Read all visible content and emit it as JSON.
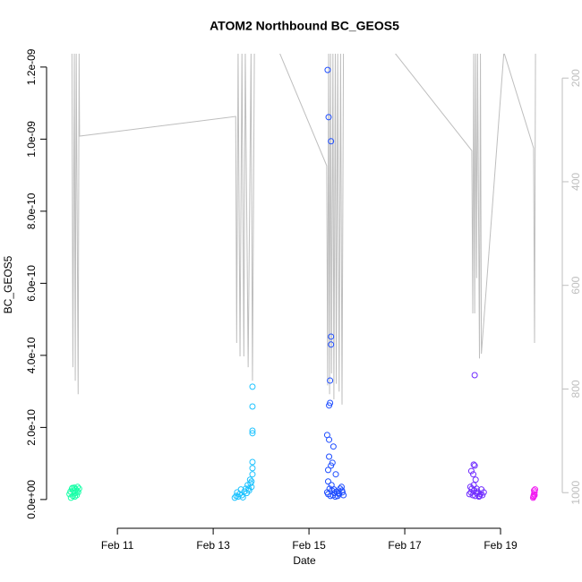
{
  "chart_data": {
    "type": "scatter",
    "title": "ATOM2 Northbound BC_GEOS5",
    "x_label": "Date",
    "y_label": "BC_GEOS5",
    "xlim": [
      9.67,
      20.14
    ],
    "xticks": [
      {
        "value": 11,
        "label": "Feb 11"
      },
      {
        "value": 13,
        "label": "Feb 13"
      },
      {
        "value": 15,
        "label": "Feb 15"
      },
      {
        "value": 17,
        "label": "Feb 17"
      },
      {
        "value": 19,
        "label": "Feb 19"
      }
    ],
    "ylim": [
      -5e-11,
      1.237e-09
    ],
    "yticks": [
      {
        "value": 0,
        "label": "0.0e+00"
      },
      {
        "value": 2e-10,
        "label": "2.0e-10"
      },
      {
        "value": 4e-10,
        "label": "4.0e-10"
      },
      {
        "value": 6e-10,
        "label": "6.0e-10"
      },
      {
        "value": 8e-10,
        "label": "8.0e-10"
      },
      {
        "value": 1e-09,
        "label": "1.0e-09"
      },
      {
        "value": 1.2e-09,
        "label": "1.2e-09"
      }
    ],
    "y2lim": [
      1048,
      153
    ],
    "y2ticks": [
      200,
      400,
      600,
      800,
      1000
    ],
    "y2_color": "#bebebe",
    "series": [
      {
        "type": "line",
        "axis": "y2",
        "color": "#bebebe",
        "x": [
          10.05,
          10.07,
          10.1,
          10.12,
          10.14,
          10.18,
          10.2,
          10.21,
          13.47,
          13.49,
          13.52,
          13.56,
          13.6,
          13.64,
          13.67,
          13.73,
          13.79,
          13.82,
          13.86,
          14.38,
          15.37,
          15.39,
          15.41,
          15.43,
          15.45,
          15.47,
          15.5,
          15.52,
          15.55,
          15.57,
          15.6,
          15.63,
          15.66,
          15.69,
          15.72,
          15.75,
          16.78,
          18.4,
          18.42,
          18.44,
          18.46,
          18.48,
          18.5,
          18.52,
          18.56,
          18.58,
          18.6,
          19.07,
          19.69,
          19.71,
          19.73
        ],
        "values": [
          150,
          758,
          150,
          784,
          150,
          810,
          150,
          312,
          274,
          711,
          150,
          737,
          150,
          737,
          150,
          758,
          150,
          784,
          150,
          150,
          369,
          793,
          150,
          810,
          150,
          770,
          150,
          820,
          150,
          790,
          150,
          805,
          150,
          830,
          150,
          150,
          150,
          340,
          654,
          150,
          654,
          150,
          586,
          150,
          741,
          150,
          732,
          150,
          335,
          711,
          150
        ]
      },
      {
        "type": "points",
        "color": "#19ffa8",
        "x": [
          10.0,
          10.02,
          10.05,
          10.07,
          10.08,
          10.1,
          10.12,
          10.13,
          10.15,
          10.17,
          10.18,
          10.2,
          10.03,
          10.11,
          10.16,
          10.06
        ],
        "values": [
          1.5e-11,
          2.2e-11,
          3e-11,
          1e-11,
          2.5e-11,
          3.3e-11,
          1.8e-11,
          2.8e-11,
          1.2e-11,
          3.5e-11,
          2e-11,
          3e-11,
          5e-12,
          8e-12,
          2.4e-11,
          3.2e-11
        ]
      },
      {
        "type": "points",
        "color": "#1ec3ff",
        "x": [
          13.45,
          13.48,
          13.5,
          13.52,
          13.55,
          13.58,
          13.6,
          13.62,
          13.65,
          13.68,
          13.7,
          13.72,
          13.75,
          13.78,
          13.8,
          13.82,
          13.82,
          13.82,
          13.82,
          13.82,
          13.82,
          13.82,
          13.8,
          13.77,
          13.74
        ],
        "values": [
          5e-12,
          1e-11,
          2e-11,
          8e-12,
          1.5e-11,
          2.8e-11,
          1.2e-11,
          6e-12,
          2.2e-11,
          3e-11,
          1.8e-11,
          4e-11,
          2.5e-11,
          4.5e-11,
          5e-11,
          3.13e-10,
          2.58e-10,
          1.91e-10,
          1.84e-10,
          1.04e-10,
          8.7e-11,
          7e-11,
          3.5e-11,
          5.5e-11,
          3e-11
        ]
      },
      {
        "type": "points",
        "color": "#1e4dff",
        "x": [
          15.39,
          15.41,
          15.46,
          15.46,
          15.46,
          15.44,
          15.44,
          15.42,
          15.38,
          15.42,
          15.51,
          15.42,
          15.49,
          15.46,
          15.4,
          15.56,
          15.38,
          15.4,
          15.43,
          15.45,
          15.48,
          15.5,
          15.53,
          15.55,
          15.58,
          15.6,
          15.63,
          15.65,
          15.68,
          15.7,
          15.72,
          15.4,
          15.47,
          15.52,
          15.62,
          15.69
        ],
        "values": [
          1.192e-09,
          1.061e-09,
          9.94e-10,
          4.52e-10,
          4.3e-10,
          3.3e-10,
          2.68e-10,
          2.61e-10,
          1.79e-10,
          1.66e-10,
          1.47e-10,
          1.19e-10,
          1.02e-10,
          9.4e-11,
          8.2e-11,
          7e-11,
          2e-11,
          1.5e-11,
          3e-11,
          1e-11,
          2.5e-11,
          1.2e-11,
          1.8e-11,
          8e-12,
          2.2e-11,
          1e-11,
          1.5e-11,
          3e-11,
          3.5e-11,
          2e-11,
          1.2e-11,
          5e-11,
          4e-11,
          2.8e-11,
          1.8e-11,
          2.5e-11
        ]
      },
      {
        "type": "points",
        "color": "#6f2bff",
        "x": [
          18.46,
          18.44,
          18.46,
          18.39,
          18.43,
          18.48,
          18.35,
          18.38,
          18.4,
          18.42,
          18.45,
          18.47,
          18.5,
          18.52,
          18.55,
          18.58,
          18.6,
          18.62,
          18.65,
          18.37,
          18.44,
          18.5,
          18.56
        ],
        "values": [
          3.45e-10,
          9.7e-11,
          9.4e-11,
          7.9e-11,
          7e-11,
          5.5e-11,
          1.5e-11,
          2e-11,
          3e-11,
          1.2e-11,
          2.5e-11,
          1e-11,
          1.8e-11,
          2.2e-11,
          8e-12,
          1.5e-11,
          2.8e-11,
          1.2e-11,
          2e-11,
          3.5e-11,
          4e-11,
          3e-11,
          1e-11
        ]
      },
      {
        "type": "points",
        "color": "#f21df2",
        "x": [
          19.68,
          19.69,
          19.7,
          19.71,
          19.72,
          19.7,
          19.69,
          19.71
        ],
        "values": [
          5e-12,
          1e-11,
          1.5e-11,
          2e-11,
          2.8e-11,
          2.5e-11,
          8e-12,
          1.2e-11
        ]
      }
    ]
  }
}
